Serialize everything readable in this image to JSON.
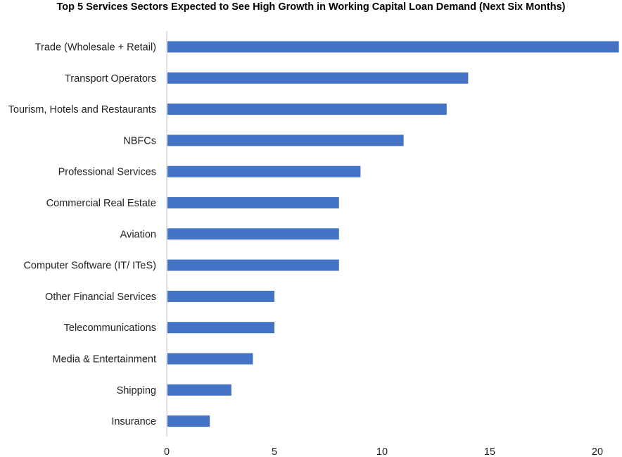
{
  "chart_data": {
    "type": "bar",
    "orientation": "horizontal",
    "title": "Top 5 Services Sectors Expected to See High Growth in Working Capital Loan Demand (Next Six Months)",
    "categories": [
      "Trade (Wholesale + Retail)",
      "Transport Operators",
      "Tourism, Hotels and Restaurants",
      "NBFCs",
      "Professional Services",
      "Commercial Real Estate",
      "Aviation",
      "Computer Software (IT/ ITeS)",
      "Other Financial Services",
      "Telecommunications",
      "Media & Entertainment",
      "Shipping",
      "Insurance"
    ],
    "values": [
      21,
      14,
      13,
      11,
      9,
      8,
      8,
      8,
      5,
      5,
      4,
      3,
      2
    ],
    "xlim": [
      0,
      21
    ],
    "xticks": [
      0,
      5,
      10,
      15,
      20
    ],
    "grid": false,
    "bar_color": "#4472C4",
    "axis_color": "#D9D9D9"
  }
}
